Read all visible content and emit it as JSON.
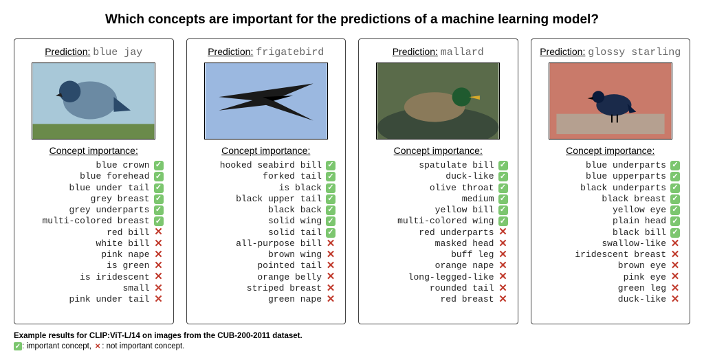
{
  "title": "Which concepts are important for the predictions of a machine learning model?",
  "prediction_label": "Prediction:",
  "concept_importance_label": "Concept importance:",
  "colors": {
    "yes_bg": "#7cc66f",
    "yes_fg": "#ffffff",
    "no_fg": "#c0392b",
    "border": "#444444",
    "text": "#222222",
    "pred_value": "#666666",
    "background": "#ffffff"
  },
  "marks": {
    "yes_glyph": "✓",
    "no_glyph": "✕"
  },
  "panels": [
    {
      "prediction": "blue jay",
      "image": {
        "bg": "#a8c8d8",
        "bird_fill": "#6b8aa3",
        "accent": "#2b4a6a",
        "style": "perched"
      },
      "concepts": [
        {
          "label": "blue crown",
          "important": true
        },
        {
          "label": "blue forehead",
          "important": true
        },
        {
          "label": "blue under tail",
          "important": true
        },
        {
          "label": "grey breast",
          "important": true
        },
        {
          "label": "grey underparts",
          "important": true
        },
        {
          "label": "multi-colored breast",
          "important": true
        },
        {
          "label": "red bill",
          "important": false
        },
        {
          "label": "white bill",
          "important": false
        },
        {
          "label": "pink nape",
          "important": false
        },
        {
          "label": "is green",
          "important": false
        },
        {
          "label": "is iridescent",
          "important": false
        },
        {
          "label": "small",
          "important": false
        },
        {
          "label": "pink under tail",
          "important": false
        }
      ]
    },
    {
      "prediction": "frigatebird",
      "image": {
        "bg": "#9bb8e0",
        "bird_fill": "#1a1a1a",
        "accent": "#000000",
        "style": "flying"
      },
      "concepts": [
        {
          "label": "hooked seabird bill",
          "important": true
        },
        {
          "label": "forked tail",
          "important": true
        },
        {
          "label": "is black",
          "important": true
        },
        {
          "label": "black upper tail",
          "important": true
        },
        {
          "label": "black back",
          "important": true
        },
        {
          "label": "solid wing",
          "important": true
        },
        {
          "label": "solid tail",
          "important": true
        },
        {
          "label": "all-purpose bill",
          "important": false
        },
        {
          "label": "brown wing",
          "important": false
        },
        {
          "label": "pointed tail",
          "important": false
        },
        {
          "label": "orange belly",
          "important": false
        },
        {
          "label": "striped breast",
          "important": false
        },
        {
          "label": "green nape",
          "important": false
        }
      ]
    },
    {
      "prediction": "mallard",
      "image": {
        "bg": "#5a6b4a",
        "bird_fill": "#8a7a5a",
        "accent": "#1f5a2f",
        "style": "swimming"
      },
      "concepts": [
        {
          "label": "spatulate bill",
          "important": true
        },
        {
          "label": "duck-like",
          "important": true
        },
        {
          "label": "olive throat",
          "important": true
        },
        {
          "label": "medium",
          "important": true
        },
        {
          "label": "yellow bill",
          "important": true
        },
        {
          "label": "multi-colored wing",
          "important": true
        },
        {
          "label": "red underparts",
          "important": false
        },
        {
          "label": "masked head",
          "important": false
        },
        {
          "label": "buff leg",
          "important": false
        },
        {
          "label": "orange nape",
          "important": false
        },
        {
          "label": "long-legged-like",
          "important": false
        },
        {
          "label": "rounded tail",
          "important": false
        },
        {
          "label": "red breast",
          "important": false
        }
      ]
    },
    {
      "prediction": "glossy starling",
      "image": {
        "bg": "#c97a6a",
        "bird_fill": "#1a2a4a",
        "accent": "#0a1a3a",
        "style": "standing"
      },
      "concepts": [
        {
          "label": "blue underparts",
          "important": true
        },
        {
          "label": "blue upperparts",
          "important": true
        },
        {
          "label": "black underparts",
          "important": true
        },
        {
          "label": "black breast",
          "important": true
        },
        {
          "label": "yellow eye",
          "important": true
        },
        {
          "label": "plain head",
          "important": true
        },
        {
          "label": "black bill",
          "important": true
        },
        {
          "label": "swallow-like",
          "important": false
        },
        {
          "label": "iridescent breast",
          "important": false
        },
        {
          "label": "brown eye",
          "important": false
        },
        {
          "label": "pink eye",
          "important": false
        },
        {
          "label": "green leg",
          "important": false
        },
        {
          "label": "duck-like",
          "important": false
        }
      ]
    }
  ],
  "footnote": {
    "line1": "Example results for CLIP:ViT-L/14 on images from the CUB-200-2011 dataset.",
    "important_label": ": important concept, ",
    "not_important_label": ": not important concept."
  }
}
